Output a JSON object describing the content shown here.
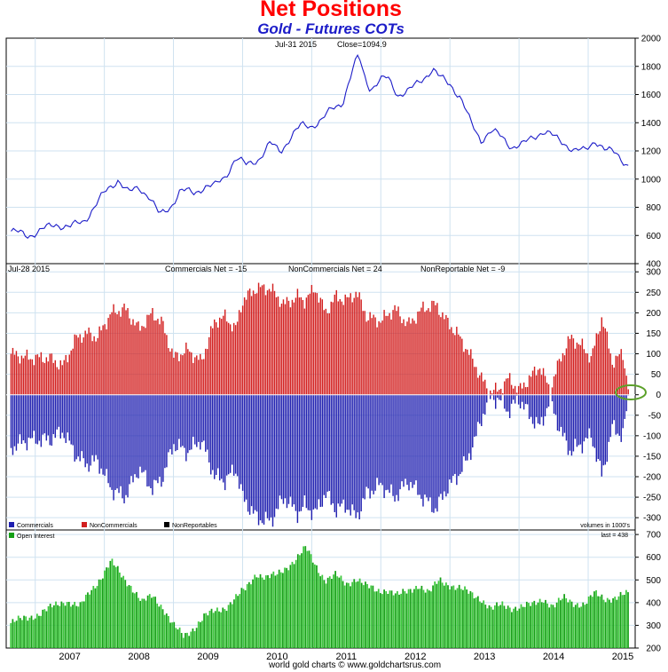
{
  "title": "Net Positions",
  "subtitle": "Gold - Futures COTs",
  "footer": "world gold charts © www.goldchartsrus.com",
  "colors": {
    "price_line": "#1c1cc8",
    "commercials": "#2020b0",
    "noncommercials": "#d21e1e",
    "open_interest": "#16a016",
    "open_interest_fill": "#3cc83c",
    "grid": "#cfe2f0",
    "highlight_ellipse": "#5aa028"
  },
  "chart_data": [
    {
      "type": "line",
      "panel": "price",
      "annotation": {
        "date": "Jul-31 2015",
        "close_label": "Close=1094.9"
      },
      "ylim": [
        400,
        2000
      ],
      "yticks": [
        400,
        600,
        800,
        1000,
        1200,
        1400,
        1600,
        1800,
        2000
      ],
      "grid": true,
      "series": [
        {
          "x": [
            2006.65,
            2006.9,
            2007.1,
            2007.3,
            2007.5,
            2007.7,
            2007.85,
            2008.0,
            2008.2,
            2008.35,
            2008.5,
            2008.65,
            2008.8,
            2008.95,
            2009.1,
            2009.3,
            2009.45,
            2009.6,
            2009.75,
            2009.9,
            2010.05,
            2010.25,
            2010.4,
            2010.55,
            2010.7,
            2010.85,
            2011.0,
            2011.15,
            2011.3,
            2011.45,
            2011.6,
            2011.68,
            2011.75,
            2011.85,
            2012.0,
            2012.1,
            2012.25,
            2012.4,
            2012.55,
            2012.75,
            2012.85,
            2013.0,
            2013.15,
            2013.3,
            2013.45,
            2013.6,
            2013.75,
            2013.9,
            2014.05,
            2014.2,
            2014.35,
            2014.5,
            2014.65,
            2014.8,
            2014.95,
            2015.1,
            2015.25,
            2015.4,
            2015.58
          ],
          "y": [
            630,
            600,
            640,
            680,
            660,
            700,
            800,
            900,
            1000,
            900,
            940,
            880,
            740,
            800,
            920,
            900,
            950,
            950,
            1020,
            1150,
            1100,
            1150,
            1250,
            1200,
            1300,
            1380,
            1380,
            1420,
            1500,
            1550,
            1780,
            1880,
            1750,
            1640,
            1700,
            1720,
            1600,
            1620,
            1690,
            1780,
            1720,
            1680,
            1580,
            1400,
            1280,
            1340,
            1300,
            1230,
            1240,
            1300,
            1340,
            1300,
            1260,
            1200,
            1200,
            1280,
            1200,
            1190,
            1094.9
          ]
        }
      ]
    },
    {
      "type": "bar",
      "panel": "net_positions",
      "annotation": {
        "date": "Jul-28 2015"
      },
      "header": {
        "commercials": "Commercials Net = -15",
        "noncommercials": "NonCommercials Net = 24",
        "nonreportable": "NonReportable Net = -9"
      },
      "ylim": [
        -330,
        320
      ],
      "yticks": [
        300,
        250,
        200,
        150,
        100,
        50,
        0,
        -50,
        -100,
        -150,
        -200,
        -250,
        -300
      ],
      "units_note": "volumes in 1000's",
      "legend": [
        "Commercials",
        "NonCommercials",
        "NonReportables"
      ],
      "grid": true,
      "series": [
        {
          "name": "Commercials",
          "x": [
            2006.65,
            2006.9,
            2007.2,
            2007.4,
            2007.6,
            2007.75,
            2007.9,
            2008.1,
            2008.3,
            2008.5,
            2008.7,
            2008.85,
            2009.0,
            2009.2,
            2009.4,
            2009.6,
            2009.75,
            2009.9,
            2010.0,
            2010.2,
            2010.4,
            2010.6,
            2010.8,
            2010.9,
            2011.05,
            2011.2,
            2011.35,
            2011.5,
            2011.65,
            2011.8,
            2012.0,
            2012.2,
            2012.4,
            2012.6,
            2012.8,
            2012.95,
            2013.1,
            2013.25,
            2013.4,
            2013.55,
            2013.7,
            2013.85,
            2014.0,
            2014.15,
            2014.3,
            2014.45,
            2014.6,
            2014.75,
            2014.9,
            2015.05,
            2015.2,
            2015.35,
            2015.5,
            2015.58
          ],
          "values": [
            -130,
            -110,
            -110,
            -90,
            -150,
            -170,
            -160,
            -230,
            -250,
            -180,
            -230,
            -200,
            -120,
            -140,
            -110,
            -200,
            -210,
            -180,
            -250,
            -300,
            -310,
            -250,
            -290,
            -270,
            -290,
            -240,
            -280,
            -270,
            -300,
            -240,
            -220,
            -250,
            -210,
            -250,
            -280,
            -230,
            -200,
            -160,
            -90,
            -10,
            -10,
            -40,
            -10,
            -50,
            -80,
            -10,
            -90,
            -140,
            -120,
            -100,
            -200,
            -80,
            -100,
            -15
          ]
        },
        {
          "name": "NonCommercials",
          "x": [
            2006.65,
            2006.9,
            2007.2,
            2007.4,
            2007.6,
            2007.75,
            2007.9,
            2008.1,
            2008.3,
            2008.5,
            2008.7,
            2008.85,
            2009.0,
            2009.2,
            2009.4,
            2009.6,
            2009.75,
            2009.9,
            2010.0,
            2010.2,
            2010.4,
            2010.6,
            2010.8,
            2010.9,
            2011.05,
            2011.2,
            2011.35,
            2011.5,
            2011.65,
            2011.8,
            2012.0,
            2012.2,
            2012.4,
            2012.6,
            2012.8,
            2012.95,
            2013.1,
            2013.25,
            2013.4,
            2013.55,
            2013.7,
            2013.85,
            2014.0,
            2014.15,
            2014.3,
            2014.45,
            2014.6,
            2014.75,
            2014.9,
            2015.05,
            2015.2,
            2015.35,
            2015.5,
            2015.58
          ],
          "values": [
            100,
            90,
            90,
            70,
            140,
            150,
            140,
            200,
            210,
            160,
            200,
            170,
            90,
            110,
            80,
            180,
            190,
            160,
            230,
            260,
            260,
            220,
            240,
            230,
            260,
            200,
            240,
            230,
            250,
            190,
            180,
            210,
            170,
            210,
            220,
            180,
            150,
            110,
            60,
            10,
            10,
            40,
            10,
            40,
            70,
            10,
            90,
            140,
            120,
            90,
            190,
            80,
            100,
            24
          ]
        },
        {
          "name": "NonReportables",
          "x": [
            2006.65,
            2007.5,
            2008.5,
            2009.5,
            2010.5,
            2011.5,
            2012.5,
            2013.5,
            2014.5,
            2015.58
          ],
          "values": [
            -10,
            -15,
            -20,
            -18,
            -25,
            -22,
            -25,
            -10,
            -8,
            -9
          ]
        }
      ]
    },
    {
      "type": "bar",
      "panel": "open_interest",
      "legend": [
        "Open Interest"
      ],
      "last_label": "last = 438",
      "ylim": [
        200,
        720
      ],
      "yticks": [
        200,
        300,
        400,
        500,
        600,
        700
      ],
      "x_ticks": [
        "2007",
        "2008",
        "2009",
        "2010",
        "2011",
        "2012",
        "2013",
        "2014",
        "2015"
      ],
      "grid": true,
      "series": [
        {
          "name": "Open Interest",
          "x": [
            2006.65,
            2006.85,
            2007.05,
            2007.25,
            2007.45,
            2007.65,
            2007.8,
            2007.95,
            2008.1,
            2008.25,
            2008.4,
            2008.55,
            2008.7,
            2008.85,
            2009.0,
            2009.15,
            2009.3,
            2009.45,
            2009.6,
            2009.75,
            2009.9,
            2010.05,
            2010.2,
            2010.35,
            2010.5,
            2010.65,
            2010.8,
            2010.92,
            2011.05,
            2011.2,
            2011.35,
            2011.5,
            2011.65,
            2011.8,
            2011.95,
            2012.1,
            2012.25,
            2012.4,
            2012.55,
            2012.7,
            2012.85,
            2013.0,
            2013.15,
            2013.3,
            2013.45,
            2013.6,
            2013.75,
            2013.9,
            2014.05,
            2014.2,
            2014.35,
            2014.5,
            2014.65,
            2014.8,
            2014.95,
            2015.1,
            2015.25,
            2015.4,
            2015.58
          ],
          "values": [
            310,
            330,
            350,
            380,
            410,
            380,
            450,
            510,
            580,
            520,
            470,
            400,
            430,
            380,
            300,
            250,
            290,
            340,
            360,
            380,
            420,
            460,
            530,
            510,
            520,
            560,
            600,
            640,
            570,
            500,
            520,
            480,
            510,
            470,
            450,
            460,
            430,
            450,
            480,
            440,
            500,
            480,
            460,
            440,
            420,
            370,
            390,
            380,
            380,
            390,
            420,
            380,
            420,
            400,
            390,
            440,
            420,
            420,
            438
          ]
        }
      ]
    }
  ]
}
